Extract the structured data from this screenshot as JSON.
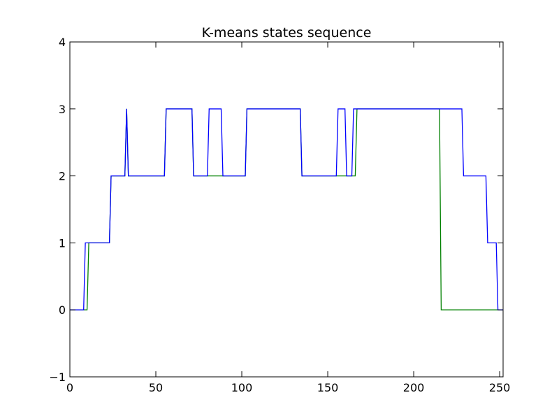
{
  "chart_data": {
    "type": "line",
    "title": "K-means states sequence",
    "xlabel": "",
    "ylabel": "",
    "xlim": [
      0,
      252
    ],
    "ylim": [
      -1,
      4
    ],
    "xticks": [
      0,
      50,
      100,
      150,
      200,
      250
    ],
    "yticks": [
      -1,
      0,
      1,
      2,
      3,
      4
    ],
    "grid": false,
    "legend": "none",
    "series": [
      {
        "color": "#008000",
        "x": [
          0,
          10,
          11,
          23,
          24,
          32,
          33,
          34,
          55,
          56,
          71,
          72,
          89,
          90,
          102,
          103,
          134,
          135,
          166,
          167,
          215,
          216,
          252
        ],
        "y": [
          0,
          0,
          1,
          1,
          2,
          2,
          3,
          2,
          2,
          3,
          3,
          2,
          2,
          2,
          2,
          3,
          3,
          2,
          2,
          3,
          3,
          0,
          0
        ]
      },
      {
        "color": "#0000ff",
        "x": [
          0,
          8,
          9,
          23,
          24,
          32,
          33,
          34,
          55,
          56,
          71,
          72,
          80,
          81,
          88,
          89,
          102,
          103,
          134,
          135,
          155,
          156,
          160,
          161,
          164,
          165,
          228,
          229,
          242,
          243,
          248,
          249,
          252
        ],
        "y": [
          0,
          0,
          1,
          1,
          2,
          2,
          3,
          2,
          2,
          3,
          3,
          2,
          2,
          3,
          3,
          2,
          2,
          3,
          3,
          2,
          2,
          3,
          3,
          2,
          2,
          3,
          3,
          2,
          2,
          1,
          1,
          0,
          0
        ]
      }
    ]
  }
}
